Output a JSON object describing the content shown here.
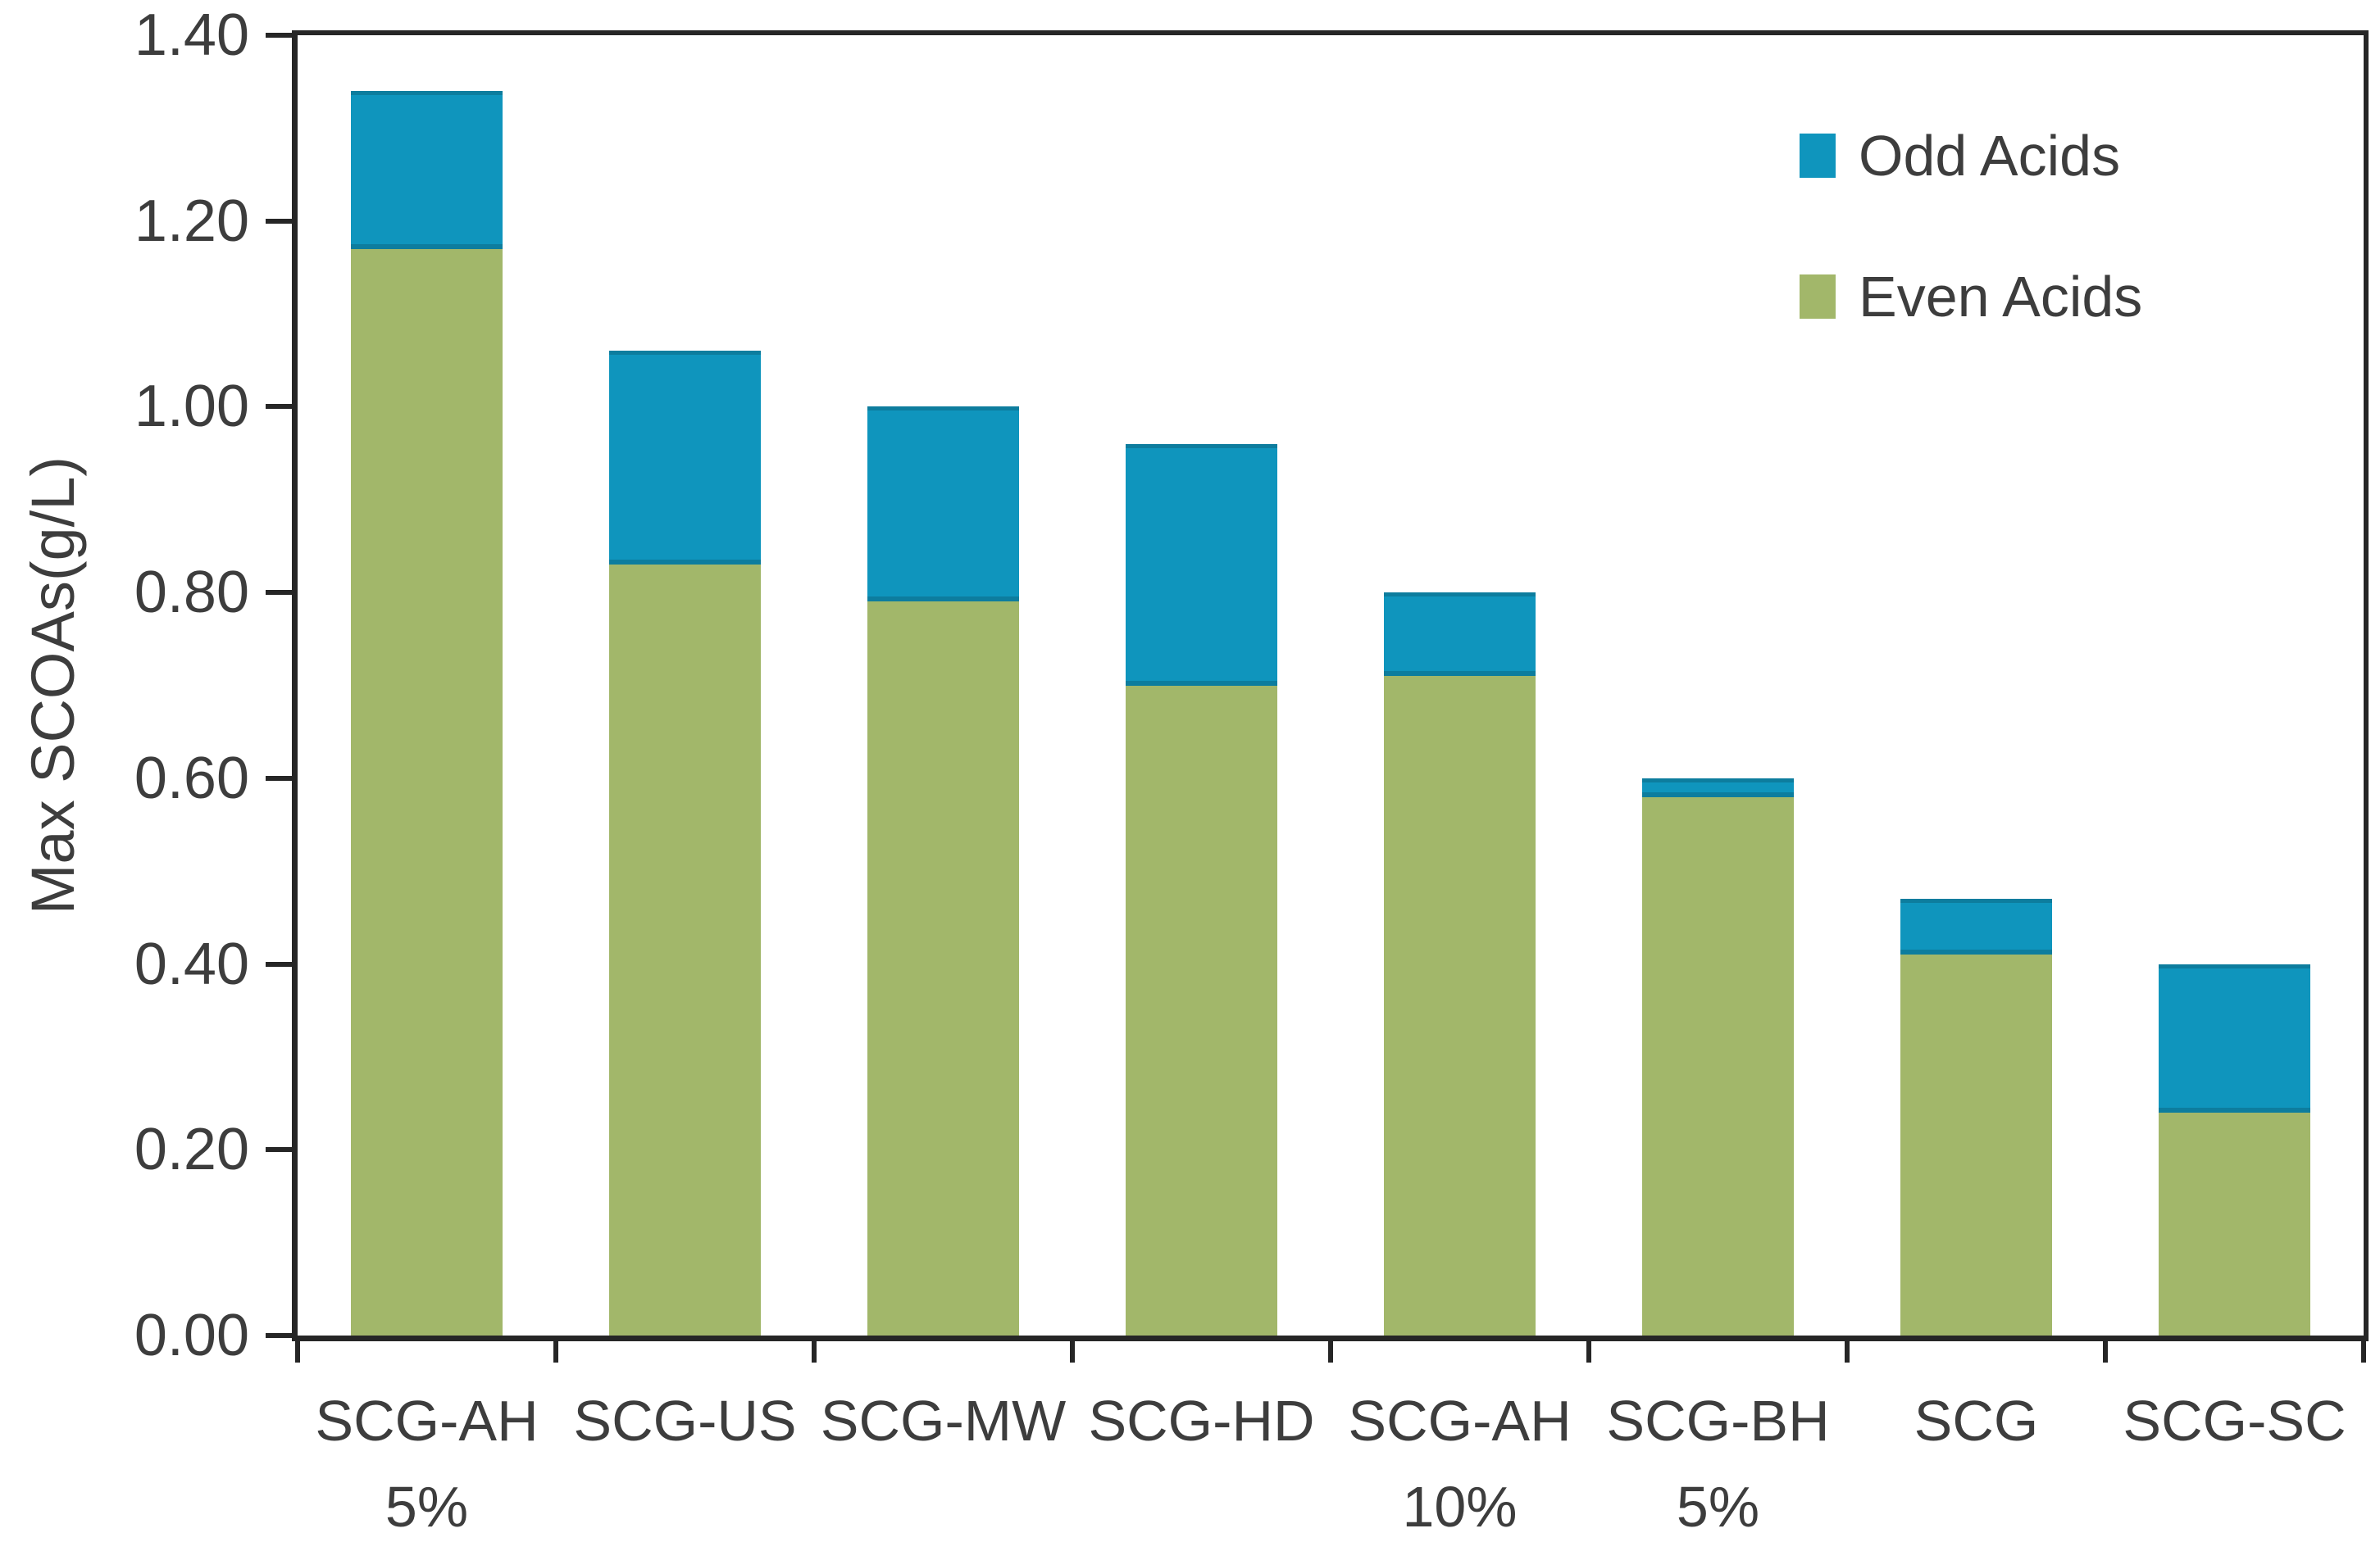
{
  "chart_data": {
    "type": "bar",
    "stacked": true,
    "title": "",
    "xlabel": "",
    "ylabel": "Max SCOAs(g/L)",
    "ylim": [
      0,
      1.4
    ],
    "ytick_step": 0.2,
    "yticks": [
      "0.00",
      "0.20",
      "0.40",
      "0.60",
      "0.80",
      "1.00",
      "1.20",
      "1.40"
    ],
    "grid": false,
    "categories": [
      {
        "label": "SCG-AH",
        "sublabel": "5%"
      },
      {
        "label": "SCG-US",
        "sublabel": ""
      },
      {
        "label": "SCG-MW",
        "sublabel": ""
      },
      {
        "label": "SCG-HD",
        "sublabel": ""
      },
      {
        "label": "SCG-AH",
        "sublabel": "10%"
      },
      {
        "label": "SCG-BH",
        "sublabel": "5%"
      },
      {
        "label": "SCG",
        "sublabel": ""
      },
      {
        "label": "SCG-SC",
        "sublabel": ""
      }
    ],
    "series": [
      {
        "name": "Even Acids",
        "color": "#a2b76a",
        "values": [
          1.17,
          0.83,
          0.79,
          0.7,
          0.71,
          0.58,
          0.41,
          0.24
        ]
      },
      {
        "name": "Odd Acids",
        "color": "#0f95bd",
        "values": [
          0.17,
          0.23,
          0.21,
          0.26,
          0.09,
          0.02,
          0.06,
          0.16
        ]
      }
    ],
    "legend": {
      "position": "top-right",
      "entries": [
        {
          "label": "Odd Acids",
          "color": "#0f95bd"
        },
        {
          "label": "Even Acids",
          "color": "#a2b76a"
        }
      ]
    },
    "colors": {
      "axis_line": "#262626",
      "text": "#3d3d3d",
      "odd_acids_fill": "#0f95bd",
      "odd_acids_edge": "#0d7d9e",
      "even_acids_fill": "#a2b76a",
      "background": "#ffffff"
    }
  }
}
